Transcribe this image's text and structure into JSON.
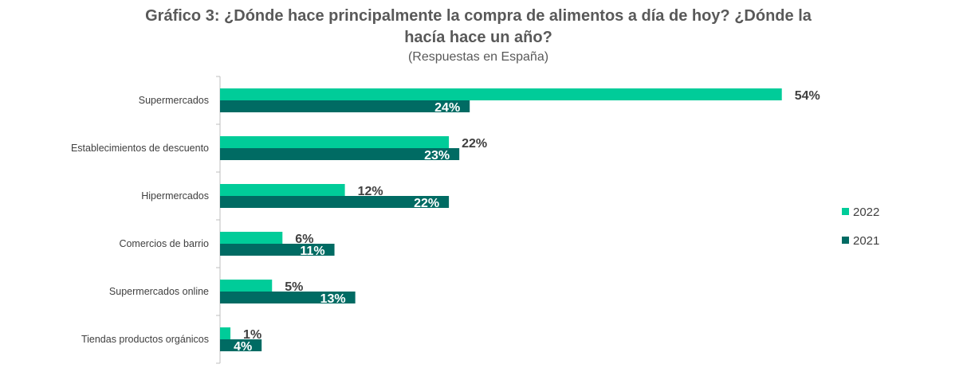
{
  "chart_data": {
    "type": "bar",
    "orientation": "horizontal",
    "title": "Gráfico 3: ¿Dónde hace principalmente la compra de alimentos a día de hoy? ¿Dónde la hacía hace un año?",
    "title_line1": "Gráfico 3: ¿Dónde hace principalmente la compra de alimentos a día de hoy? ¿Dónde la",
    "title_line2": "hacía hace un año?",
    "subtitle": "(Respuestas en España)",
    "categories": [
      "Supermercados",
      "Establecimientos de descuento",
      "Hipermercados",
      "Comercios de barrio",
      "Supermercados online",
      "Tiendas productos orgánicos"
    ],
    "series": [
      {
        "name": "2022",
        "values": [
          54,
          22,
          12,
          6,
          5,
          1
        ],
        "labels": [
          "54%",
          "22%",
          "12%",
          "6%",
          "5%",
          "1%"
        ],
        "color": "#00CC99"
      },
      {
        "name": "2021",
        "values": [
          24,
          23,
          22,
          11,
          13,
          4
        ],
        "labels": [
          "24%",
          "23%",
          "22%",
          "11%",
          "13%",
          "4%"
        ],
        "color": "#006B63"
      }
    ],
    "xlim": [
      0,
      55
    ],
    "grid": false,
    "legend": "right"
  }
}
